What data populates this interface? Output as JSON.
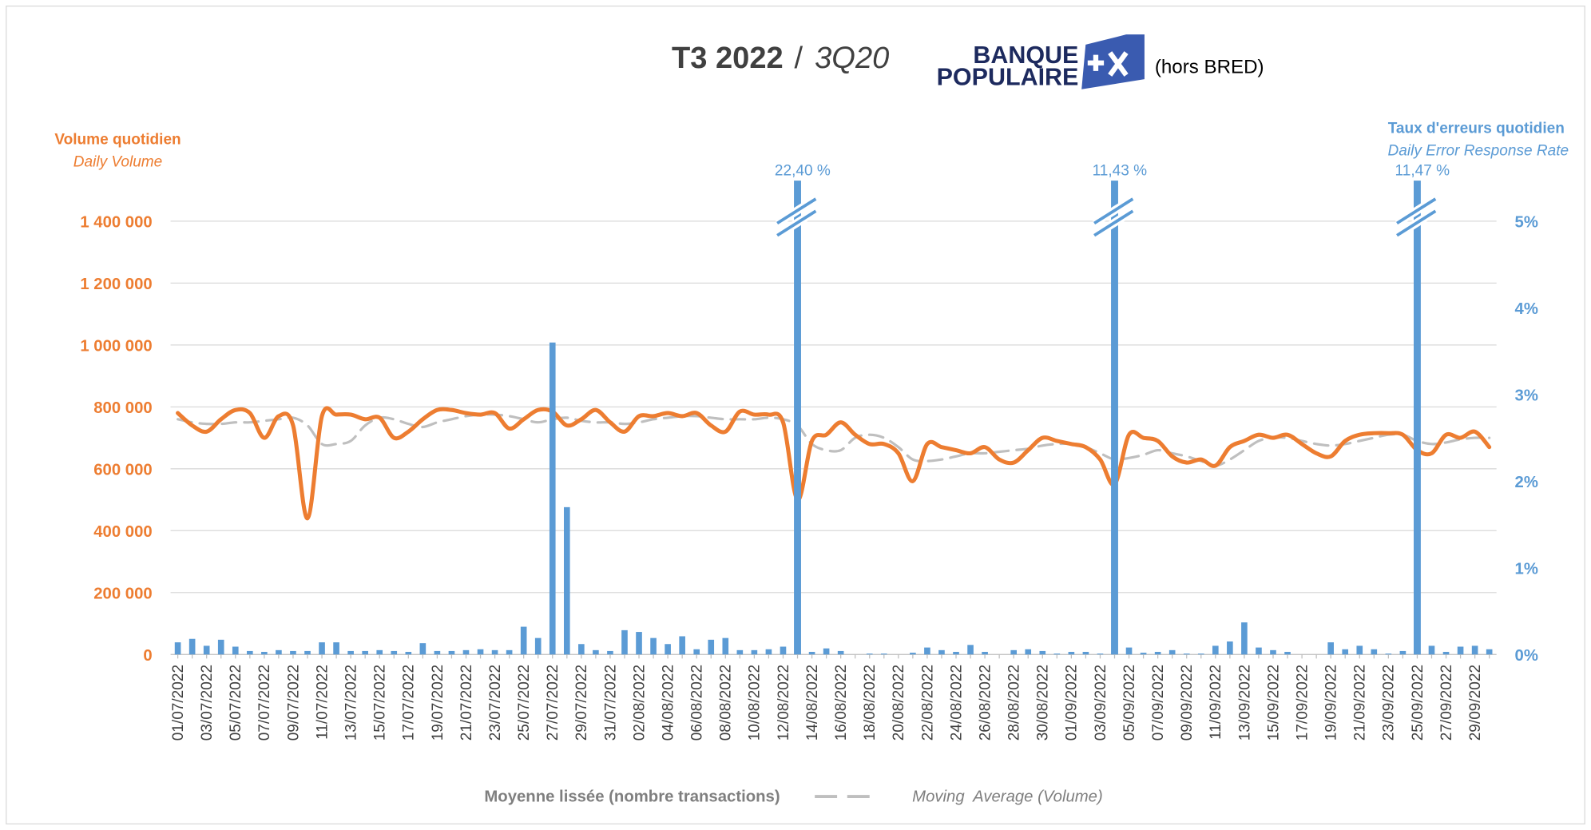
{
  "chart_data": {
    "type": "combo",
    "title_parts": [
      "T3 2022",
      "/",
      "3Q20"
    ],
    "logo": [
      "BANQUE",
      "POPULAIRE"
    ],
    "note": "(hors BRED)",
    "ylabel": "Volume quotidien",
    "ylabel_en": "Daily Volume",
    "y2label": "Taux d'erreurs quotidien",
    "y2label_en": "Daily Error Response Rate",
    "categories": [
      "01/07/2022",
      null,
      "03/07/2022",
      null,
      "05/07/2022",
      null,
      "07/07/2022",
      null,
      "09/07/2022",
      null,
      "11/07/2022",
      null,
      "13/07/2022",
      null,
      "15/07/2022",
      null,
      "17/07/2022",
      null,
      "19/07/2022",
      null,
      "21/07/2022",
      null,
      "23/07/2022",
      null,
      "25/07/2022",
      null,
      "27/07/2022",
      null,
      "29/07/2022",
      null,
      "31/07/2022",
      null,
      "02/08/2022",
      null,
      "04/08/2022",
      null,
      "06/08/2022",
      null,
      "08/08/2022",
      null,
      "10/08/2022",
      null,
      "12/08/2022",
      null,
      "14/08/2022",
      null,
      "16/08/2022",
      null,
      "18/08/2022",
      null,
      "20/08/2022",
      null,
      "22/08/2022",
      null,
      "24/08/2022",
      null,
      "26/08/2022",
      null,
      "28/08/2022",
      null,
      "30/08/2022",
      null,
      "01/09/2022",
      null,
      "03/09/2022",
      null,
      "05/09/2022",
      null,
      "07/09/2022",
      null,
      "09/09/2022",
      null,
      "11/09/2022",
      null,
      "13/09/2022",
      null,
      "15/09/2022",
      null,
      "17/09/2022",
      null,
      "19/09/2022",
      null,
      "21/09/2022",
      null,
      "23/09/2022",
      null,
      "25/09/2022",
      null,
      "27/09/2022",
      null,
      "29/09/2022",
      null
    ],
    "series": [
      {
        "type": "line",
        "color": "#ed7d31",
        "values": [
          780000,
          740000,
          720000,
          760000,
          790000,
          780000,
          700000,
          770000,
          740000,
          440000,
          770000,
          775000,
          775000,
          760000,
          765000,
          700000,
          720000,
          760000,
          790000,
          790000,
          780000,
          775000,
          780000,
          730000,
          760000,
          790000,
          785000,
          740000,
          760000,
          790000,
          750000,
          720000,
          770000,
          770000,
          780000,
          770000,
          780000,
          740000,
          720000,
          785000,
          775000,
          775000,
          750000,
          500000,
          690000,
          710000,
          750000,
          710000,
          680000,
          680000,
          650000,
          560000,
          680000,
          670000,
          660000,
          650000,
          670000,
          630000,
          620000,
          660000,
          700000,
          690000,
          680000,
          670000,
          630000,
          550000,
          710000,
          700000,
          690000,
          640000,
          620000,
          630000,
          610000,
          670000,
          690000,
          710000,
          700000,
          710000,
          680000,
          650000,
          640000,
          690000,
          710000,
          715000,
          715000,
          710000,
          660000,
          650000,
          710000,
          700000,
          720000,
          670000
        ]
      },
      {
        "type": "line",
        "name": "Moyenne lissée (nombre transactions)",
        "name_en": "Moving  Average (Volume)",
        "color": "#bfbfbf",
        "dashed": true,
        "values": [
          760000,
          750000,
          745000,
          745000,
          750000,
          750000,
          755000,
          760000,
          765000,
          740000,
          680000,
          680000,
          690000,
          740000,
          765000,
          760000,
          745000,
          735000,
          750000,
          760000,
          770000,
          775000,
          775000,
          770000,
          760000,
          750000,
          760000,
          765000,
          755000,
          750000,
          750000,
          745000,
          750000,
          760000,
          765000,
          770000,
          770000,
          765000,
          760000,
          760000,
          760000,
          765000,
          760000,
          740000,
          680000,
          660000,
          660000,
          700000,
          710000,
          700000,
          670000,
          630000,
          625000,
          630000,
          640000,
          650000,
          650000,
          655000,
          660000,
          665000,
          675000,
          680000,
          680000,
          670000,
          650000,
          630000,
          635000,
          645000,
          660000,
          650000,
          640000,
          625000,
          610000,
          630000,
          660000,
          690000,
          700000,
          700000,
          690000,
          680000,
          675000,
          680000,
          690000,
          700000,
          710000,
          710000,
          690000,
          680000,
          685000,
          695000,
          700000,
          700000
        ]
      },
      {
        "type": "bar",
        "axis": "y2",
        "color": "#5b9bd5",
        "values": [
          0.14,
          0.18,
          0.1,
          0.17,
          0.09,
          0.04,
          0.03,
          0.05,
          0.04,
          0.04,
          0.14,
          0.14,
          0.04,
          0.04,
          0.05,
          0.04,
          0.03,
          0.13,
          0.04,
          0.04,
          0.05,
          0.06,
          0.05,
          0.05,
          0.32,
          0.19,
          3.6,
          1.7,
          0.12,
          0.05,
          0.04,
          0.28,
          0.26,
          0.19,
          0.12,
          0.21,
          0.06,
          0.17,
          0.19,
          0.05,
          0.05,
          0.06,
          0.09,
          22.4,
          0.03,
          0.07,
          0.04,
          0,
          0.01,
          0.01,
          0,
          0.02,
          0.08,
          0.05,
          0.03,
          0.11,
          0.03,
          0,
          0.05,
          0.06,
          0.04,
          0.01,
          0.03,
          0.03,
          0.01,
          11.43,
          0.08,
          0.02,
          0.03,
          0.05,
          0.01,
          0.01,
          0.1,
          0.15,
          0.37,
          0.08,
          0.05,
          0.03,
          0,
          0,
          0.14,
          0.06,
          0.1,
          0.06,
          0.01,
          0.04,
          11.47,
          0.1,
          0.03,
          0.09,
          0.1,
          0.06
        ],
        "value_labels": [
          null,
          null,
          null,
          null,
          null,
          null,
          null,
          null,
          null,
          null,
          null,
          null,
          null,
          null,
          null,
          null,
          null,
          null,
          null,
          null,
          null,
          null,
          null,
          null,
          null,
          null,
          null,
          null,
          null,
          null,
          null,
          null,
          null,
          null,
          null,
          null,
          null,
          null,
          null,
          null,
          null,
          null,
          null,
          "22,40 %",
          null,
          null,
          null,
          null,
          null,
          null,
          null,
          null,
          null,
          null,
          null,
          null,
          null,
          null,
          null,
          null,
          null,
          null,
          null,
          null,
          null,
          "11,43 %",
          null,
          null,
          null,
          null,
          null,
          null,
          null,
          null,
          null,
          null,
          null,
          null,
          null,
          null,
          null,
          null,
          null,
          null,
          null,
          null,
          "11,47 %",
          null,
          null,
          null,
          null,
          null
        ]
      }
    ],
    "ylim": [
      0,
      1400000
    ],
    "yticks": [
      0,
      {
        "value": 200000,
        "label": "200 000"
      },
      {
        "value": 400000,
        "label": "400 000"
      },
      {
        "value": 600000,
        "label": "600 000"
      },
      {
        "value": 800000,
        "label": "800 000"
      },
      {
        "value": 1000000,
        "label": "1 000 000"
      },
      {
        "value": 1200000,
        "label": "1 200 000"
      },
      {
        "value": 1400000,
        "label": "1 400 000"
      }
    ],
    "y2lim": [
      0,
      5
    ],
    "y2ticks": [
      {
        "value": 0,
        "label": "0%"
      },
      {
        "value": 1,
        "label": "1%"
      },
      {
        "value": 2,
        "label": "2%"
      },
      {
        "value": 3,
        "label": "3%"
      },
      {
        "value": 4,
        "label": "4%"
      },
      {
        "value": 5,
        "label": "5%"
      }
    ],
    "grid": true
  }
}
